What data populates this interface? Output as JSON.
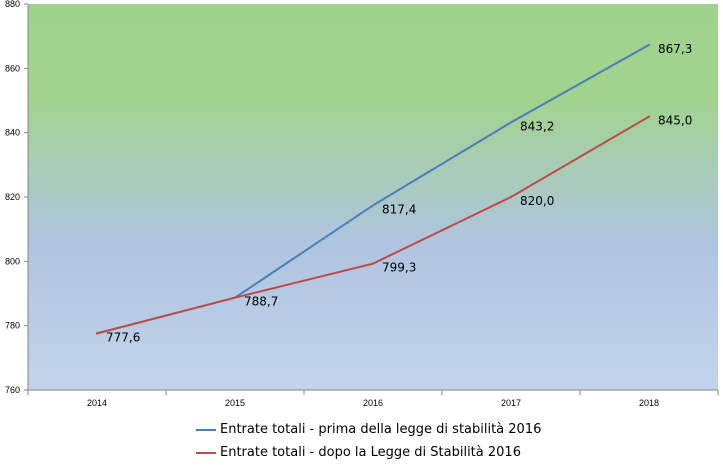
{
  "chart_data": {
    "type": "line",
    "categories": [
      "2014",
      "2015",
      "2016",
      "2017",
      "2018"
    ],
    "ylim": [
      760,
      880
    ],
    "yticks": [
      760,
      780,
      800,
      820,
      840,
      860,
      880
    ],
    "grid": false,
    "legend_position": "bottom",
    "background": "gradient green (top) to blue (bottom)",
    "series": [
      {
        "name": "Entrate totali - prima della legge di stabilità 2016",
        "color": "#4a7ebb",
        "values": [
          777.6,
          788.7,
          817.4,
          843.2,
          867.3
        ],
        "labels": [
          "",
          "",
          "817,4",
          "843,2",
          "867,3"
        ]
      },
      {
        "name": "Entrate totali - dopo la Legge di Stabilità 2016",
        "color": "#be4b48",
        "values": [
          777.6,
          788.7,
          799.3,
          820.0,
          845.0
        ],
        "labels": [
          "777,6",
          "788,7",
          "799,3",
          "820,0",
          "845,0"
        ]
      }
    ]
  }
}
